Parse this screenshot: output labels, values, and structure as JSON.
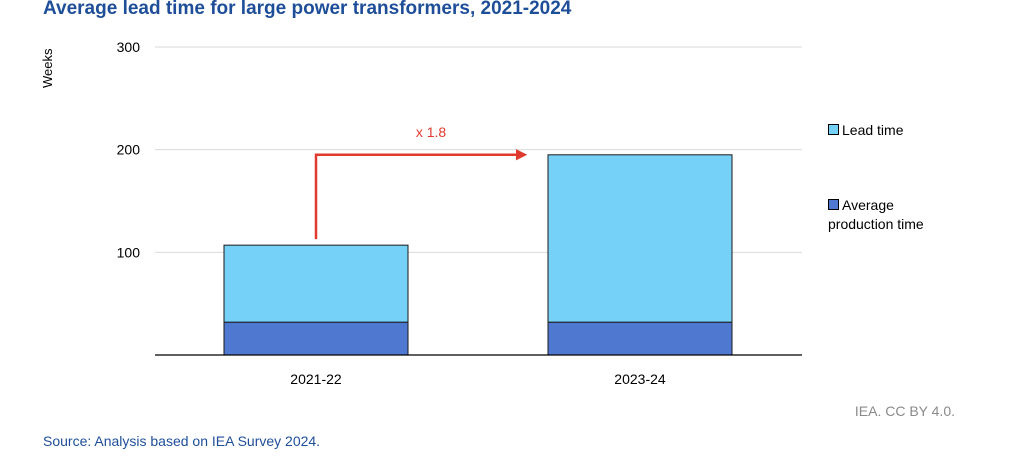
{
  "title": "Average lead time for large power transformers, 2021-2024",
  "source": "Source: Analysis based on IEA Survey 2024.",
  "credit": "IEA. CC BY 4.0.",
  "colors": {
    "lead_time": "#75d1f7",
    "production": "#4f78d0",
    "arrow": "#e03a2f",
    "title": "#1f4e99"
  },
  "chart_data": {
    "type": "bar",
    "stacked": true,
    "ylabel": "Weeks",
    "ylim": [
      0,
      300
    ],
    "yticks": [
      100,
      200,
      300
    ],
    "grid": true,
    "categories": [
      "2021-22",
      "2023-24"
    ],
    "series": [
      {
        "name": "Average production time",
        "values": [
          32,
          32
        ]
      },
      {
        "name": "Lead time",
        "values": [
          75,
          163
        ]
      }
    ],
    "legend_placement": "right",
    "annotation": {
      "text": "x 1.8",
      "from_category": "2021-22",
      "to_category": "2023-24"
    }
  },
  "legend": [
    {
      "key": "lead_time",
      "label": "Lead time"
    },
    {
      "key": "production",
      "label": "Average production time"
    }
  ]
}
